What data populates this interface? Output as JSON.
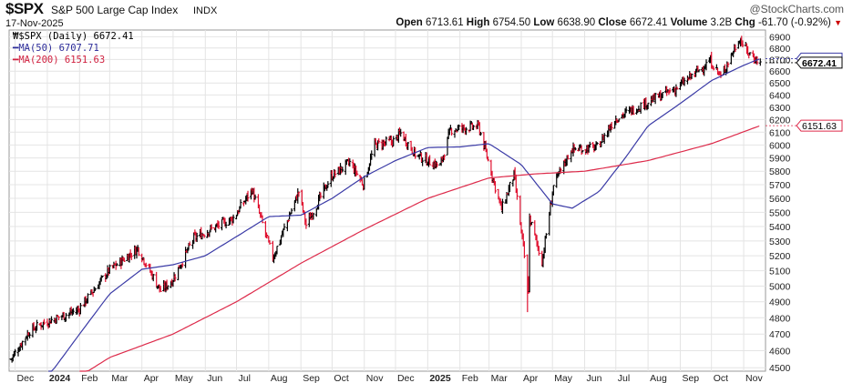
{
  "header": {
    "symbol": "$SPX",
    "name": "S&P 500 Large Cap Index",
    "exchange": "INDX",
    "date": "17-Nov-2025",
    "watermark": "@StockCharts.com",
    "open_label": "Open",
    "open": "6713.61",
    "high_label": "High",
    "high": "6754.50",
    "low_label": "Low",
    "low": "6638.90",
    "close_label": "Close",
    "close": "6672.41",
    "volume_label": "Volume",
    "volume": "3.2B",
    "chg_label": "Chg",
    "chg": "-61.70 (-0.92%)"
  },
  "legend": {
    "price": "$SPX (Daily) 6672.41",
    "ma50": "MA(50) 6707.71",
    "ma200": "MA(200) 6151.63"
  },
  "chart_data": {
    "type": "ohlc",
    "title": "$SPX S&P 500 Large Cap Index",
    "yscale": "log",
    "ylim": [
      4450,
      6950
    ],
    "yticks": [
      4500,
      4600,
      4700,
      4800,
      4900,
      5000,
      5100,
      5200,
      5300,
      5400,
      5500,
      5600,
      5700,
      5800,
      5900,
      6000,
      6100,
      6200,
      6300,
      6400,
      6500,
      6600,
      6700,
      6800,
      6900
    ],
    "xlim": [
      "2023-11-27",
      "2025-11-17"
    ],
    "xticks": [
      {
        "d": "2023-12-01",
        "l": "Dec"
      },
      {
        "d": "2024-01-01",
        "l": "2024"
      },
      {
        "d": "2024-02-01",
        "l": "Feb"
      },
      {
        "d": "2024-03-01",
        "l": "Mar"
      },
      {
        "d": "2024-04-01",
        "l": "Apr"
      },
      {
        "d": "2024-05-01",
        "l": "May"
      },
      {
        "d": "2024-06-01",
        "l": "Jun"
      },
      {
        "d": "2024-07-01",
        "l": "Jul"
      },
      {
        "d": "2024-08-01",
        "l": "Aug"
      },
      {
        "d": "2024-09-01",
        "l": "Sep"
      },
      {
        "d": "2024-10-01",
        "l": "Oct"
      },
      {
        "d": "2024-11-01",
        "l": "Nov"
      },
      {
        "d": "2024-12-01",
        "l": "Dec"
      },
      {
        "d": "2025-01-01",
        "l": "2025"
      },
      {
        "d": "2025-02-01",
        "l": "Feb"
      },
      {
        "d": "2025-03-01",
        "l": "Mar"
      },
      {
        "d": "2025-04-01",
        "l": "Apr"
      },
      {
        "d": "2025-05-01",
        "l": "May"
      },
      {
        "d": "2025-06-01",
        "l": "Jun"
      },
      {
        "d": "2025-07-01",
        "l": "Jul"
      },
      {
        "d": "2025-08-01",
        "l": "Aug"
      },
      {
        "d": "2025-09-01",
        "l": "Sep"
      },
      {
        "d": "2025-10-01",
        "l": "Oct"
      },
      {
        "d": "2025-11-01",
        "l": "Nov"
      }
    ],
    "price_path": [
      [
        "2023-11-27",
        4550
      ],
      [
        "2023-12-15",
        4720
      ],
      [
        "2023-12-29",
        4770
      ],
      [
        "2024-01-31",
        4850
      ],
      [
        "2024-02-29",
        5100
      ],
      [
        "2024-03-28",
        5250
      ],
      [
        "2024-04-19",
        4970
      ],
      [
        "2024-04-30",
        5035
      ],
      [
        "2024-05-21",
        5320
      ],
      [
        "2024-06-28",
        5460
      ],
      [
        "2024-07-16",
        5665
      ],
      [
        "2024-08-05",
        5186
      ],
      [
        "2024-08-30",
        5650
      ],
      [
        "2024-09-06",
        5410
      ],
      [
        "2024-09-30",
        5760
      ],
      [
        "2024-10-18",
        5865
      ],
      [
        "2024-10-31",
        5705
      ],
      [
        "2024-11-11",
        6000
      ],
      [
        "2024-11-29",
        6030
      ],
      [
        "2024-12-06",
        6090
      ],
      [
        "2024-12-20",
        5930
      ],
      [
        "2024-12-31",
        5880
      ],
      [
        "2025-01-13",
        5840
      ],
      [
        "2025-01-23",
        6120
      ],
      [
        "2025-02-19",
        6145
      ],
      [
        "2025-03-13",
        5520
      ],
      [
        "2025-03-25",
        5775
      ],
      [
        "2025-04-08",
        4980
      ],
      [
        "2025-04-09",
        5460
      ],
      [
        "2025-04-21",
        5160
      ],
      [
        "2025-05-02",
        5690
      ],
      [
        "2025-05-19",
        5965
      ],
      [
        "2025-06-13",
        5980
      ],
      [
        "2025-06-30",
        6205
      ],
      [
        "2025-07-31",
        6340
      ],
      [
        "2025-08-29",
        6460
      ],
      [
        "2025-09-30",
        6690
      ],
      [
        "2025-10-10",
        6550
      ],
      [
        "2025-10-28",
        6890
      ],
      [
        "2025-11-04",
        6770
      ],
      [
        "2025-11-17",
        6672
      ]
    ],
    "series": [
      {
        "name": "MA(50)",
        "color": "#3a3aa6",
        "points": [
          [
            "2024-01-02",
            4450
          ],
          [
            "2024-02-01",
            4700
          ],
          [
            "2024-03-01",
            4950
          ],
          [
            "2024-04-01",
            5110
          ],
          [
            "2024-05-01",
            5140
          ],
          [
            "2024-06-01",
            5200
          ],
          [
            "2024-07-01",
            5330
          ],
          [
            "2024-08-01",
            5470
          ],
          [
            "2024-09-01",
            5480
          ],
          [
            "2024-10-01",
            5600
          ],
          [
            "2024-11-01",
            5760
          ],
          [
            "2024-12-01",
            5880
          ],
          [
            "2025-01-01",
            5980
          ],
          [
            "2025-02-01",
            5985
          ],
          [
            "2025-03-01",
            6010
          ],
          [
            "2025-04-01",
            5850
          ],
          [
            "2025-05-01",
            5560
          ],
          [
            "2025-05-20",
            5530
          ],
          [
            "2025-06-15",
            5650
          ],
          [
            "2025-07-10",
            5900
          ],
          [
            "2025-08-01",
            6150
          ],
          [
            "2025-09-01",
            6330
          ],
          [
            "2025-10-01",
            6520
          ],
          [
            "2025-11-01",
            6650
          ],
          [
            "2025-11-17",
            6707.71
          ]
        ]
      },
      {
        "name": "MA(200)",
        "color": "#dd2a4a",
        "points": [
          [
            "2024-02-01",
            4450
          ],
          [
            "2024-03-01",
            4560
          ],
          [
            "2024-05-01",
            4700
          ],
          [
            "2024-07-01",
            4900
          ],
          [
            "2024-09-01",
            5150
          ],
          [
            "2024-11-01",
            5380
          ],
          [
            "2025-01-01",
            5600
          ],
          [
            "2025-03-01",
            5750
          ],
          [
            "2025-04-15",
            5780
          ],
          [
            "2025-06-01",
            5800
          ],
          [
            "2025-08-01",
            5880
          ],
          [
            "2025-10-01",
            6010
          ],
          [
            "2025-11-17",
            6151.63
          ]
        ]
      }
    ],
    "last_labels": {
      "price": "6672.41",
      "ma200": "6151.63"
    }
  }
}
